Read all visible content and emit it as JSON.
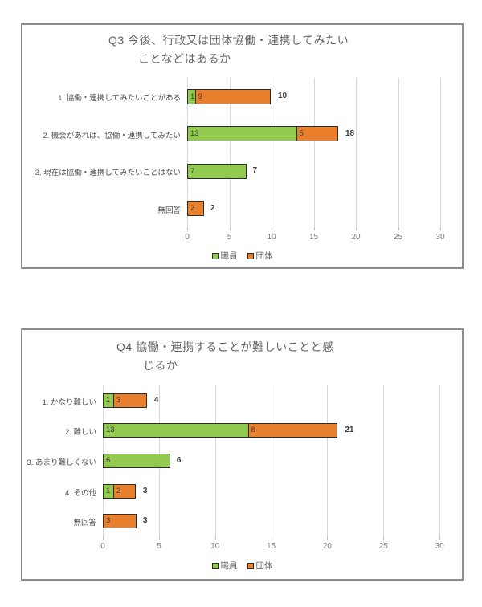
{
  "chart_data": [
    {
      "type": "bar",
      "orientation": "horizontal-stacked",
      "title": "Q3 今後、行政又は団体協働・連携してみたいことなどはあるか",
      "title_lines": [
        "Q3  今後、行政又は団体協働・連携してみたい",
        "ことなどはあるか"
      ],
      "categories": [
        "1. 協働・連携してみたいことがある",
        "2. 機会があれば、協働・連携してみたい",
        "3. 現在は協働・連携してみたいことはない",
        "無回答"
      ],
      "series": [
        {
          "name": "職員",
          "color": "#92C94F",
          "values": [
            1,
            13,
            7,
            0
          ]
        },
        {
          "name": "団体",
          "color": "#E9802E",
          "values": [
            9,
            5,
            0,
            2
          ]
        }
      ],
      "totals": [
        10,
        18,
        7,
        2
      ],
      "xticks": [
        0,
        5,
        10,
        15,
        20,
        25,
        30
      ],
      "xlim": [
        0,
        30
      ],
      "grid": true,
      "legend_position": "bottom"
    },
    {
      "type": "bar",
      "orientation": "horizontal-stacked",
      "title": "Q4 協働・連携することが難しいことと感じるか",
      "title_lines": [
        "Q4  協働・連携することが難しいことと感",
        "じるか"
      ],
      "categories": [
        "1. かなり難しい",
        "2. 難しい",
        "3. あまり難しくない",
        "4. その他",
        "無回答"
      ],
      "series": [
        {
          "name": "職員",
          "color": "#92C94F",
          "values": [
            1,
            13,
            6,
            1,
            0
          ]
        },
        {
          "name": "団体",
          "color": "#E9802E",
          "values": [
            3,
            8,
            0,
            2,
            3
          ]
        }
      ],
      "totals": [
        4,
        21,
        6,
        3,
        3
      ],
      "xticks": [
        0,
        5,
        10,
        15,
        20,
        25,
        30
      ],
      "xlim": [
        0,
        30
      ],
      "grid": true,
      "legend_position": "bottom"
    }
  ],
  "colors": {
    "staff_green": "#92C94F",
    "org_orange": "#E9802E",
    "gridline": "#D9D9D9",
    "frame_border": "#8C8C8C",
    "title_text": "#646464",
    "tick_text": "#808080",
    "category_text": "#4D4D4D",
    "value_text": "#3A3A3A",
    "segment_border": "#2B2B2B"
  }
}
